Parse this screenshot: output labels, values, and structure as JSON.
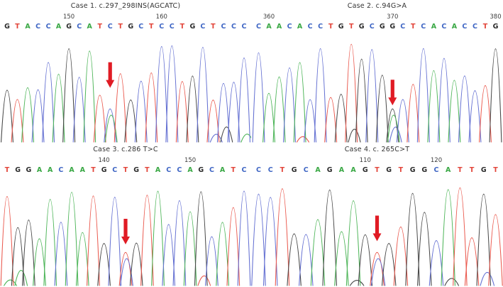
{
  "figure": {
    "background": "#ffffff"
  },
  "base_colors": {
    "A": "#3aa845",
    "C": "#3f66c4",
    "G": "#2b2b2b",
    "T": "#e2453a"
  },
  "trace_colors": {
    "A": "#4db558",
    "C": "#6470d2",
    "G": "#474747",
    "T": "#ea5a4f"
  },
  "arrow_color": "#e01b24",
  "chart_data": [
    {
      "type": "line",
      "title": "Case 1. c.297_298INS(AGCATC)",
      "sequence": "GTACCAGCATCTGCTCCTGCTCCC",
      "tick_labels": [
        {
          "label": "150",
          "base_index": 6
        },
        {
          "label": "160",
          "base_index": 15
        }
      ],
      "arrow": {
        "base_index": 10,
        "secondary_base": "A",
        "top_frac": 0.27
      }
    },
    {
      "type": "line",
      "title": "Case 2. c.94G>A",
      "sequence": "CAACACCTGTGCGGCTCACACCTG",
      "tick_labels": [
        {
          "label": "360",
          "base_index": 1
        },
        {
          "label": "370",
          "base_index": 13
        },
        {
          "label": "380",
          "base_index": 23
        }
      ],
      "arrow": {
        "base_index": 13,
        "secondary_base": "A",
        "top_frac": 0.43
      }
    },
    {
      "type": "line",
      "title": "Case 3. c.286 T>C",
      "sequence": "TGGAACAATGCTGTACCAGCATC",
      "tick_labels": [
        {
          "label": "140",
          "base_index": 9
        },
        {
          "label": "150",
          "base_index": 17
        }
      ],
      "arrow": {
        "base_index": 11,
        "secondary_base": "C",
        "top_frac": 0.39
      }
    },
    {
      "type": "line",
      "title": "Case 4. c. 265C>T",
      "sequence": "CCTGCAGAAGTGTGGCATTGT",
      "tick_labels": [
        {
          "label": "110",
          "base_index": 9
        },
        {
          "label": "120",
          "base_index": 15
        }
      ],
      "arrow": {
        "base_index": 10,
        "secondary_base": "C",
        "top_frac": 0.36
      }
    }
  ]
}
